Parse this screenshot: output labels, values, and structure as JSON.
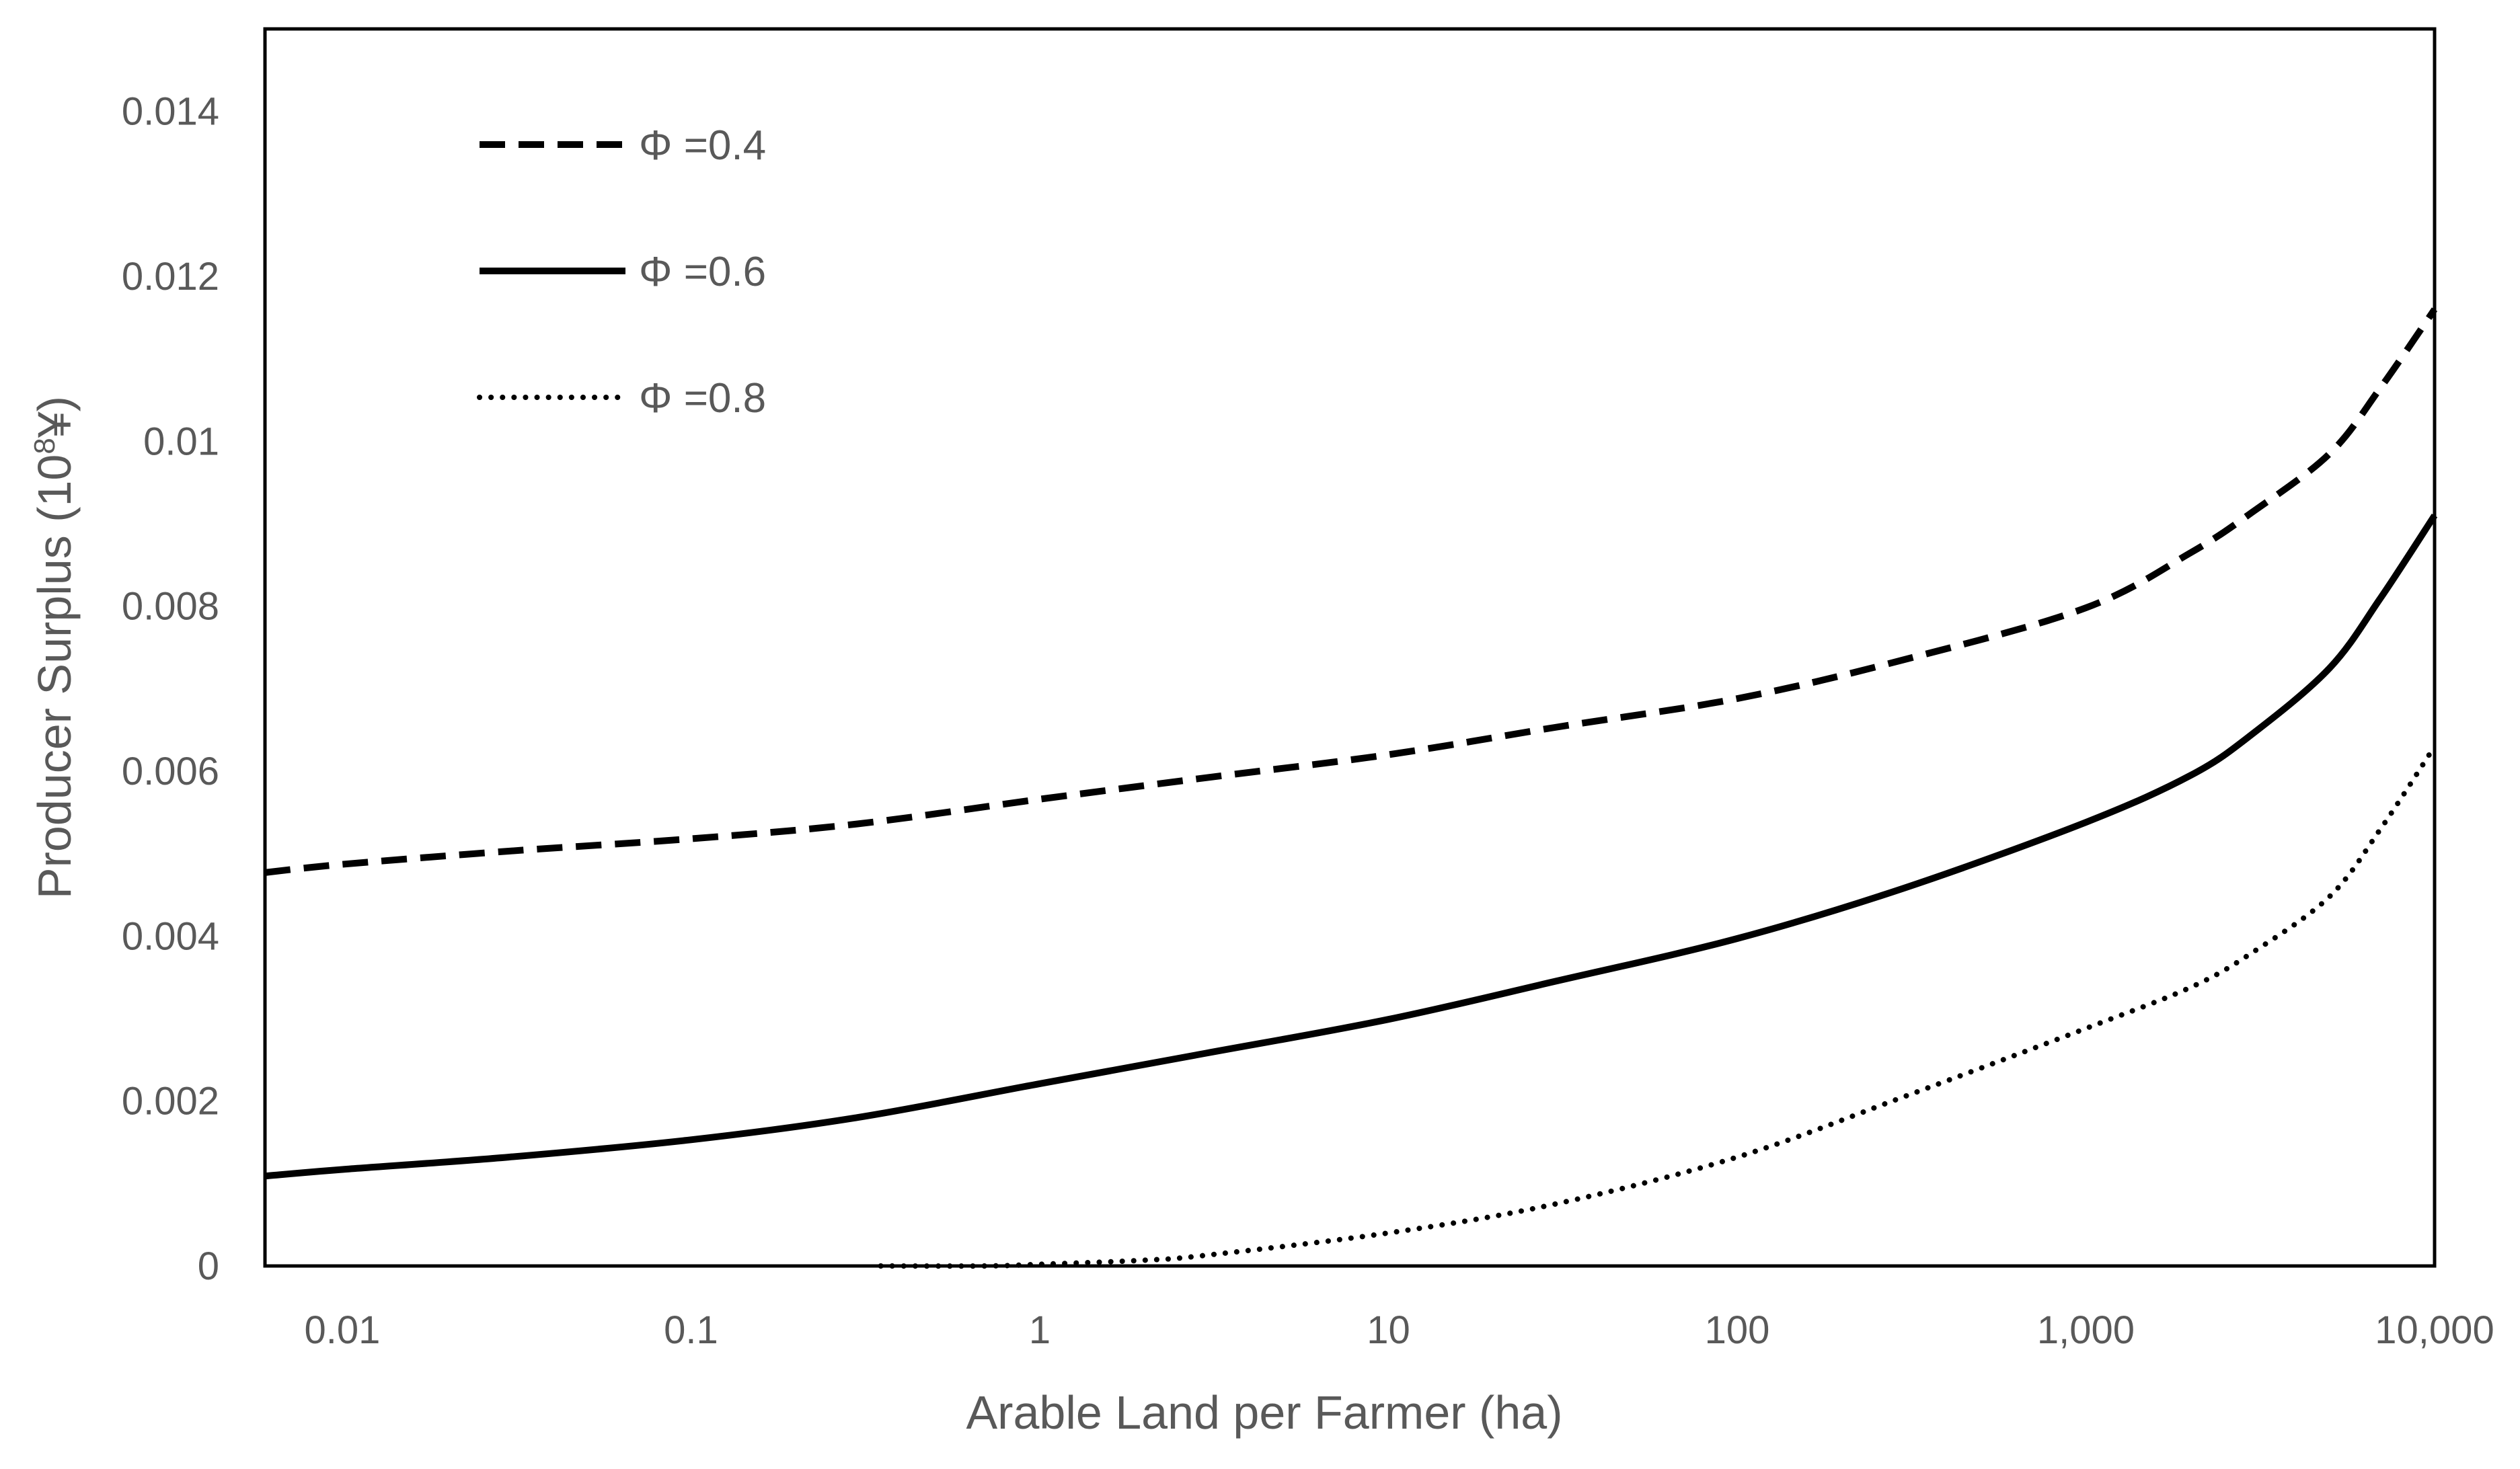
{
  "chart_data": {
    "type": "line",
    "title": "",
    "xlabel": "Arable Land per Farmer (ha)",
    "ylabel": {
      "base": "Producer Surplus (10",
      "sup": "8",
      "unit": "¥)"
    },
    "x_scale": "log",
    "xlim": [
      0.006,
      10000
    ],
    "ylim": [
      0,
      0.015
    ],
    "x_ticks": [
      {
        "value": 0.01,
        "label": "0.01"
      },
      {
        "value": 0.1,
        "label": "0.1"
      },
      {
        "value": 1,
        "label": "1"
      },
      {
        "value": 10,
        "label": "10"
      },
      {
        "value": 100,
        "label": "100"
      },
      {
        "value": 1000,
        "label": "1,000"
      },
      {
        "value": 10000,
        "label": "10,000"
      }
    ],
    "y_ticks": [
      {
        "value": 0,
        "label": "0"
      },
      {
        "value": 0.002,
        "label": "0.002"
      },
      {
        "value": 0.004,
        "label": "0.004"
      },
      {
        "value": 0.006,
        "label": "0.006"
      },
      {
        "value": 0.008,
        "label": "0.008"
      },
      {
        "value": 0.01,
        "label": "0.01"
      },
      {
        "value": 0.012,
        "label": "0.012"
      },
      {
        "value": 0.014,
        "label": "0.014"
      }
    ],
    "grid": false,
    "legend_position": "top-left",
    "series": [
      {
        "name": "Φ =0.4",
        "style": "dashed",
        "color": "#000000",
        "points": [
          [
            0.006,
            0.00477
          ],
          [
            0.01,
            0.00487
          ],
          [
            0.03,
            0.00503
          ],
          [
            0.1,
            0.00518
          ],
          [
            0.3,
            0.00536
          ],
          [
            1,
            0.00566
          ],
          [
            3,
            0.00592
          ],
          [
            10,
            0.0062
          ],
          [
            30,
            0.00653
          ],
          [
            100,
            0.00688
          ],
          [
            300,
            0.00735
          ],
          [
            1000,
            0.00798
          ],
          [
            2000,
            0.00865
          ],
          [
            3000,
            0.00914
          ],
          [
            5000,
            0.00985
          ],
          [
            7000,
            0.01065
          ],
          [
            10000,
            0.0116
          ]
        ]
      },
      {
        "name": "Φ =0.6",
        "style": "solid",
        "color": "#000000",
        "points": [
          [
            0.006,
            0.00109
          ],
          [
            0.01,
            0.00117
          ],
          [
            0.03,
            0.00132
          ],
          [
            0.1,
            0.00153
          ],
          [
            0.3,
            0.0018
          ],
          [
            1,
            0.00221
          ],
          [
            3,
            0.00258
          ],
          [
            10,
            0.00299
          ],
          [
            30,
            0.00345
          ],
          [
            100,
            0.00397
          ],
          [
            300,
            0.00458
          ],
          [
            1000,
            0.00538
          ],
          [
            2000,
            0.00595
          ],
          [
            3000,
            0.00645
          ],
          [
            5000,
            0.00725
          ],
          [
            7000,
            0.0081
          ],
          [
            10000,
            0.0091
          ]
        ]
      },
      {
        "name": "Φ =0.8",
        "style": "dotted",
        "color": "#000000",
        "points": [
          [
            0.35,
            0.0
          ],
          [
            0.7,
            0.0
          ],
          [
            1,
            2e-05
          ],
          [
            2,
            7e-05
          ],
          [
            3,
            0.00013
          ],
          [
            10,
            0.0004
          ],
          [
            30,
            0.00075
          ],
          [
            100,
            0.00132
          ],
          [
            300,
            0.00205
          ],
          [
            1000,
            0.00288
          ],
          [
            2000,
            0.00338
          ],
          [
            3000,
            0.0038
          ],
          [
            5000,
            0.00448
          ],
          [
            7000,
            0.0053
          ],
          [
            10000,
            0.0063
          ]
        ]
      }
    ]
  }
}
